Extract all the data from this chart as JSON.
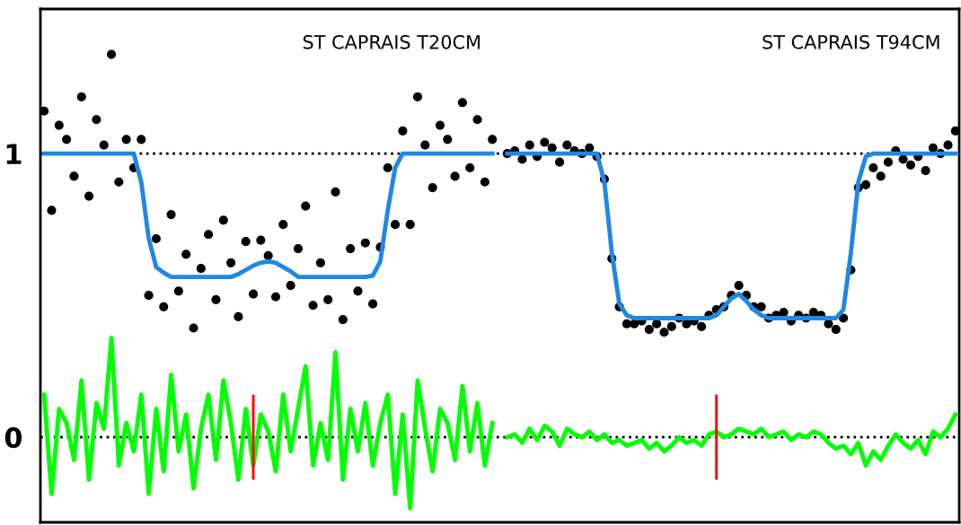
{
  "chart_data": {
    "type": "scatter",
    "annotations": [
      "ST CAPRAIS T20CM",
      "ST CAPRAIS T94CM"
    ],
    "categories": [
      null,
      null,
      null,
      null,
      null,
      null,
      null,
      null,
      null,
      null,
      null,
      null,
      null,
      null,
      null,
      null,
      null,
      null,
      null,
      null,
      null,
      null,
      null,
      null,
      null,
      null,
      null,
      null,
      null,
      null,
      null,
      null,
      null,
      null,
      null,
      null,
      null,
      null,
      null,
      null,
      null,
      null,
      null,
      null,
      null,
      null,
      null,
      null,
      null,
      null,
      null,
      null,
      null,
      null,
      null,
      null,
      null,
      null,
      null,
      null,
      null,
      null,
      null,
      null,
      null,
      null,
      null,
      null,
      null,
      null,
      null,
      null,
      null,
      null,
      null,
      null,
      null,
      null,
      null,
      null,
      null,
      null,
      null,
      null,
      null,
      null,
      null,
      null,
      null,
      null,
      null,
      null,
      null,
      null,
      null,
      null,
      null,
      null,
      null,
      null,
      null,
      null,
      null,
      null,
      null,
      null,
      null,
      null,
      null,
      null,
      null,
      null,
      null,
      null,
      null,
      null,
      null,
      null,
      null,
      null,
      null,
      null,
      null
    ],
    "ylim": [
      -0.3,
      1.51
    ],
    "yticks": [
      0,
      1
    ],
    "grid": false,
    "ref_lines": [
      {
        "axis": "y",
        "value": 1,
        "color": "#000000",
        "line_style": "dotted"
      },
      {
        "axis": "y",
        "value": 0,
        "color": "#000000",
        "line_style": "dotted"
      }
    ],
    "series": [
      {
        "marker": "circle",
        "color": "#000000",
        "values": [
          1.15,
          0.8,
          1.1,
          1.05,
          0.92,
          1.2,
          0.85,
          1.12,
          1.03,
          1.35,
          0.9,
          1.05,
          0.95,
          1.05,
          0.5,
          0.7,
          0.46,
          0.785,
          0.515,
          0.645,
          0.385,
          0.595,
          0.715,
          0.485,
          0.765,
          0.615,
          0.425,
          0.69,
          0.505,
          0.695,
          0.64,
          0.495,
          0.75,
          0.535,
          0.665,
          0.815,
          0.465,
          0.615,
          0.485,
          0.865,
          0.415,
          0.665,
          0.515,
          0.685,
          0.47,
          0.67,
          0.95,
          0.75,
          1.08,
          0.75,
          1.2,
          1.03,
          0.88,
          1.1,
          1.05,
          0.92,
          1.18,
          0.95,
          1.12,
          0.9,
          1.05,
          null,
          1.0,
          1.01,
          0.98,
          1.03,
          0.99,
          1.04,
          1.02,
          0.97,
          1.03,
          1.01,
          1.0,
          1.02,
          0.99,
          0.91,
          0.63,
          0.46,
          0.4,
          0.4,
          0.41,
          0.38,
          0.4,
          0.37,
          0.39,
          0.42,
          0.4,
          0.41,
          0.39,
          0.43,
          0.45,
          0.46,
          0.5,
          0.535,
          0.5,
          0.46,
          0.46,
          0.42,
          0.43,
          0.44,
          0.41,
          0.43,
          0.42,
          0.44,
          0.43,
          0.4,
          0.38,
          0.42,
          0.59,
          0.88,
          0.89,
          0.95,
          0.92,
          0.97,
          1.01,
          0.98,
          0.96,
          0.99,
          0.94,
          1.02,
          1.0,
          1.03,
          1.08
        ]
      },
      {
        "type": "line",
        "marker": "none",
        "line_style": "solid",
        "color": "#1e88e5",
        "values": [
          1,
          1,
          1,
          1,
          1,
          1,
          1,
          1,
          1,
          1,
          1,
          1,
          1,
          0.9,
          0.7,
          0.6,
          0.58,
          0.565,
          0.565,
          0.565,
          0.565,
          0.565,
          0.565,
          0.565,
          0.565,
          0.565,
          0.575,
          0.59,
          0.605,
          0.615,
          0.62,
          0.615,
          0.6,
          0.585,
          0.565,
          0.565,
          0.565,
          0.565,
          0.565,
          0.565,
          0.565,
          0.565,
          0.565,
          0.565,
          0.57,
          0.62,
          0.8,
          0.95,
          1,
          1,
          1,
          1,
          1,
          1,
          1,
          1,
          1,
          1,
          1,
          1,
          1,
          null,
          1,
          1,
          1,
          1,
          1,
          1,
          1,
          1,
          1,
          1,
          1,
          1,
          1,
          0.9,
          0.65,
          0.47,
          0.43,
          0.42,
          0.42,
          0.42,
          0.42,
          0.42,
          0.42,
          0.42,
          0.42,
          0.42,
          0.42,
          0.42,
          0.43,
          0.46,
          0.49,
          0.505,
          0.48,
          0.45,
          0.43,
          0.42,
          0.42,
          0.42,
          0.42,
          0.42,
          0.42,
          0.42,
          0.42,
          0.42,
          0.42,
          0.45,
          0.65,
          0.9,
          0.99,
          1,
          1,
          1,
          1,
          1,
          1,
          1,
          1,
          1,
          1,
          1,
          1
        ]
      },
      {
        "type": "line",
        "marker": "none",
        "line_style": "solid",
        "color": "#00ff00",
        "values": [
          0.15,
          -0.2,
          0.1,
          0.05,
          -0.08,
          0.2,
          -0.15,
          0.12,
          0.03,
          0.35,
          -0.1,
          0.05,
          -0.05,
          0.15,
          -0.2,
          0.1,
          -0.12,
          0.22,
          -0.05,
          0.08,
          -0.18,
          0.03,
          0.15,
          -0.08,
          0.2,
          0.05,
          -0.15,
          0.1,
          -0.1,
          0.08,
          0.02,
          -0.12,
          0.15,
          -0.05,
          0.1,
          0.25,
          -0.1,
          0.05,
          -0.08,
          0.3,
          -0.15,
          0.1,
          -0.05,
          0.12,
          -0.1,
          0.05,
          0.15,
          -0.2,
          0.08,
          -0.25,
          0.2,
          0.03,
          -0.12,
          0.1,
          0.05,
          -0.08,
          0.18,
          -0.05,
          0.12,
          -0.1,
          0.05,
          null,
          0.0,
          0.01,
          -0.02,
          0.03,
          -0.01,
          0.04,
          0.02,
          -0.03,
          0.03,
          0.01,
          0.0,
          0.02,
          -0.01,
          0.01,
          -0.02,
          -0.01,
          -0.03,
          -0.02,
          -0.01,
          -0.04,
          -0.02,
          -0.05,
          -0.03,
          0.0,
          -0.02,
          -0.01,
          -0.03,
          0.01,
          0.02,
          0.0,
          0.01,
          0.03,
          0.02,
          0.01,
          0.03,
          0.0,
          0.01,
          0.02,
          -0.01,
          0.01,
          0.0,
          0.02,
          0.01,
          -0.02,
          -0.04,
          -0.03,
          -0.06,
          -0.02,
          -0.1,
          -0.05,
          -0.08,
          -0.03,
          0.01,
          -0.02,
          -0.04,
          -0.01,
          -0.06,
          0.02,
          0.0,
          0.03,
          0.08
        ]
      },
      {
        "type": "bar",
        "color": "#ff0000",
        "values": [
          null,
          null,
          null,
          null,
          null,
          null,
          null,
          null,
          null,
          null,
          null,
          null,
          null,
          null,
          null,
          null,
          null,
          null,
          null,
          null,
          null,
          null,
          null,
          null,
          null,
          null,
          null,
          null,
          0.3,
          null,
          null,
          null,
          null,
          null,
          null,
          null,
          null,
          null,
          null,
          null,
          null,
          null,
          null,
          null,
          null,
          null,
          null,
          null,
          null,
          null,
          null,
          null,
          null,
          null,
          null,
          null,
          null,
          null,
          null,
          null,
          null,
          null,
          null,
          null,
          null,
          null,
          null,
          null,
          null,
          null,
          null,
          null,
          null,
          null,
          null,
          null,
          null,
          null,
          null,
          null,
          null,
          null,
          null,
          null,
          null,
          null,
          null,
          null,
          null,
          null,
          0.3,
          null,
          null,
          null,
          null,
          null,
          null,
          null,
          null,
          null,
          null,
          null,
          null,
          null,
          null,
          null,
          null,
          null,
          null,
          null,
          null,
          null,
          null,
          null,
          null,
          null,
          null,
          null,
          null,
          null,
          null,
          null,
          null
        ],
        "base": [
          null,
          null,
          null,
          null,
          null,
          null,
          null,
          null,
          null,
          null,
          null,
          null,
          null,
          null,
          null,
          null,
          null,
          null,
          null,
          null,
          null,
          null,
          null,
          null,
          null,
          null,
          null,
          null,
          -0.15,
          null,
          null,
          null,
          null,
          null,
          null,
          null,
          null,
          null,
          null,
          null,
          null,
          null,
          null,
          null,
          null,
          null,
          null,
          null,
          null,
          null,
          null,
          null,
          null,
          null,
          null,
          null,
          null,
          null,
          null,
          null,
          null,
          null,
          null,
          null,
          null,
          null,
          null,
          null,
          null,
          null,
          null,
          null,
          null,
          null,
          null,
          null,
          null,
          null,
          null,
          null,
          null,
          null,
          null,
          null,
          null,
          null,
          null,
          null,
          null,
          null,
          -0.15,
          null,
          null,
          null,
          null,
          null,
          null,
          null,
          null,
          null,
          null,
          null,
          null,
          null,
          null,
          null,
          null,
          null,
          null,
          null,
          null,
          null,
          null,
          null,
          null,
          null,
          null,
          null,
          null,
          null,
          null,
          null,
          null
        ]
      }
    ]
  }
}
